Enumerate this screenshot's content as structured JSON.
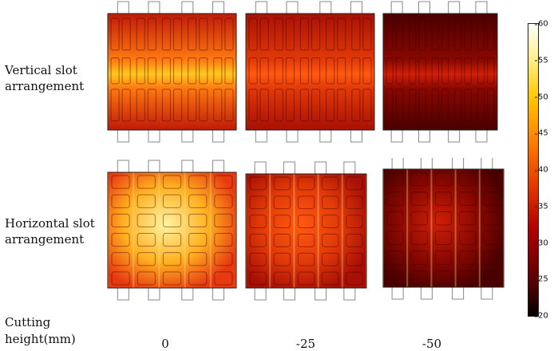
{
  "rows": {
    "vertical": [
      "Vertical slot",
      "arrangement"
    ],
    "horizontal": [
      "Horizontal slot",
      "arrangement"
    ]
  },
  "axis_title": [
    "Cutting",
    "height(mm)"
  ],
  "columns": [
    "0",
    "-25",
    "-50"
  ],
  "colorbar": {
    "min": 20,
    "max": 60,
    "ticks": [
      60,
      55,
      50,
      45,
      40,
      35,
      30,
      25,
      20
    ]
  },
  "panels": [
    {
      "slot": "vertical",
      "cutting_height": "0",
      "heat": "high"
    },
    {
      "slot": "vertical",
      "cutting_height": "-25",
      "heat": "medium"
    },
    {
      "slot": "vertical",
      "cutting_height": "-50",
      "heat": "low"
    },
    {
      "slot": "horizontal",
      "cutting_height": "0",
      "heat": "very-high"
    },
    {
      "slot": "horizontal",
      "cutting_height": "-25",
      "heat": "medium"
    },
    {
      "slot": "horizontal",
      "cutting_height": "-50",
      "heat": "low"
    }
  ]
}
